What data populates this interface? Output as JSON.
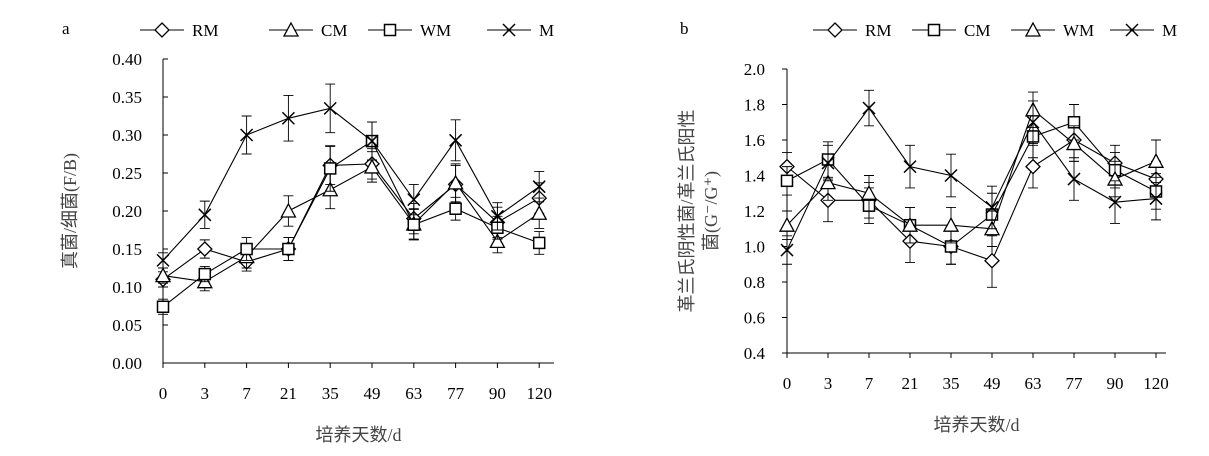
{
  "chart_data": [
    {
      "type": "line",
      "panel_label": "a",
      "categories": [
        "0",
        "3",
        "7",
        "21",
        "35",
        "49",
        "63",
        "77",
        "90",
        "120"
      ],
      "ylabel": "真菌/细菌(F/B)",
      "xlabel": "培养天数/d",
      "ylim": [
        0,
        0.4
      ],
      "yticks": [
        "0.00",
        "0.05",
        "0.10",
        "0.15",
        "0.20",
        "0.25",
        "0.30",
        "0.35",
        "0.40"
      ],
      "grid": false,
      "legend_position": "top",
      "series": [
        {
          "name": "RM",
          "marker": "diamond",
          "values": [
            0.11,
            0.15,
            0.133,
            0.15,
            0.26,
            0.262,
            0.19,
            0.235,
            0.185,
            0.217
          ],
          "errors": [
            0.01,
            0.012,
            0.012,
            0.015,
            0.025,
            0.02,
            0.02,
            0.025,
            0.02,
            0.02
          ]
        },
        {
          "name": "CM",
          "marker": "triangle",
          "values": [
            0.115,
            0.107,
            0.14,
            0.2,
            0.228,
            0.258,
            0.183,
            0.237,
            0.16,
            0.197
          ],
          "errors": [
            0.01,
            0.012,
            0.015,
            0.02,
            0.025,
            0.02,
            0.02,
            0.025,
            0.015,
            0.02
          ]
        },
        {
          "name": "WM",
          "marker": "square",
          "values": [
            0.074,
            0.117,
            0.15,
            0.15,
            0.256,
            0.292,
            0.182,
            0.203,
            0.178,
            0.158
          ],
          "errors": [
            0.01,
            0.01,
            0.015,
            0.015,
            0.03,
            0.025,
            0.02,
            0.015,
            0.015,
            0.015
          ]
        },
        {
          "name": "M",
          "marker": "x",
          "values": [
            0.135,
            0.195,
            0.3,
            0.322,
            0.335,
            0.292,
            0.215,
            0.293,
            0.193,
            0.232
          ],
          "errors": [
            0.01,
            0.018,
            0.025,
            0.03,
            0.032,
            0.025,
            0.02,
            0.027,
            0.018,
            0.02
          ]
        }
      ]
    },
    {
      "type": "line",
      "panel_label": "b",
      "categories": [
        "0",
        "3",
        "7",
        "21",
        "35",
        "49",
        "63",
        "77",
        "90",
        "120"
      ],
      "ylabel_lines": [
        "革兰氏阴性菌/革兰氏阳性",
        "菌(G⁻/G⁺)"
      ],
      "xlabel": "培养天数/d",
      "ylim": [
        0.4,
        2.0
      ],
      "yticks": [
        "0.4",
        "0.6",
        "0.8",
        "1.0",
        "1.2",
        "1.4",
        "1.6",
        "1.8",
        "2.0"
      ],
      "grid": false,
      "legend_position": "top",
      "series": [
        {
          "name": "RM",
          "marker": "diamond",
          "values": [
            1.45,
            1.26,
            1.26,
            1.03,
            1.0,
            0.92,
            1.45,
            1.6,
            1.47,
            1.38
          ],
          "errors": [
            0.08,
            0.12,
            0.1,
            0.12,
            0.1,
            0.15,
            0.12,
            0.12,
            0.1,
            0.1
          ]
        },
        {
          "name": "CM",
          "marker": "square",
          "values": [
            1.37,
            1.49,
            1.23,
            1.12,
            1.0,
            1.18,
            1.62,
            1.7,
            1.43,
            1.31
          ],
          "errors": [
            0.08,
            0.1,
            0.1,
            0.1,
            0.1,
            0.12,
            0.12,
            0.1,
            0.1,
            0.1
          ]
        },
        {
          "name": "WM",
          "marker": "triangle",
          "values": [
            1.12,
            1.36,
            1.3,
            1.12,
            1.12,
            1.1,
            1.77,
            1.58,
            1.38,
            1.48
          ],
          "errors": [
            0.08,
            0.1,
            0.1,
            0.1,
            0.1,
            0.1,
            0.1,
            0.1,
            0.1,
            0.12
          ]
        },
        {
          "name": "M",
          "marker": "x",
          "values": [
            0.98,
            1.47,
            1.78,
            1.45,
            1.4,
            1.22,
            1.7,
            1.38,
            1.25,
            1.27
          ],
          "errors": [
            0.08,
            0.1,
            0.1,
            0.12,
            0.12,
            0.12,
            0.12,
            0.12,
            0.12,
            0.12
          ]
        }
      ]
    }
  ]
}
